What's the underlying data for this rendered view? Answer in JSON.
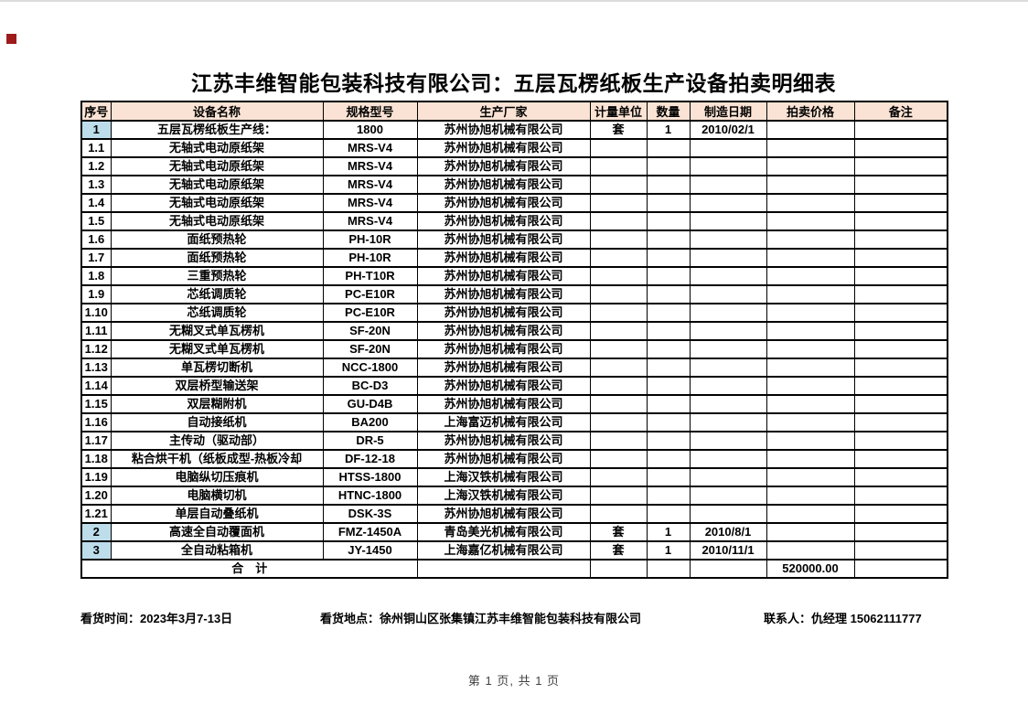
{
  "page": {
    "title": "江苏丰维智能包装科技有限公司：五层瓦楞纸板生产设备拍卖明细表",
    "page_footer": "第 1 页, 共 1 页"
  },
  "info": {
    "view_time": "看货时间：2023年3月7-13日",
    "view_place": "看货地点：徐州铜山区张集镇江苏丰维智能包装科技有限公司",
    "contact": "联系人：仇经理 15062111777"
  },
  "table": {
    "headers": [
      "序号",
      "设备名称",
      "规格型号",
      "生产厂家",
      "计量单位",
      "数量",
      "制造日期",
      "拍卖价格",
      "备注"
    ],
    "rows": [
      {
        "no": "1",
        "name": "五层瓦楞纸板生产线：",
        "model": "1800",
        "maker": "苏州协旭机械有限公司",
        "unit": "套",
        "qty": "1",
        "date": "2010/02/1",
        "price": "",
        "note": "",
        "highlight": true
      },
      {
        "no": "1.1",
        "name": "无轴式电动原纸架",
        "model": "MRS-V4",
        "maker": "苏州协旭机械有限公司",
        "unit": "",
        "qty": "",
        "date": "",
        "price": "",
        "note": "",
        "highlight": false
      },
      {
        "no": "1.2",
        "name": "无轴式电动原纸架",
        "model": "MRS-V4",
        "maker": "苏州协旭机械有限公司",
        "unit": "",
        "qty": "",
        "date": "",
        "price": "",
        "note": "",
        "highlight": false
      },
      {
        "no": "1.3",
        "name": "无轴式电动原纸架",
        "model": "MRS-V4",
        "maker": "苏州协旭机械有限公司",
        "unit": "",
        "qty": "",
        "date": "",
        "price": "",
        "note": "",
        "highlight": false
      },
      {
        "no": "1.4",
        "name": "无轴式电动原纸架",
        "model": "MRS-V4",
        "maker": "苏州协旭机械有限公司",
        "unit": "",
        "qty": "",
        "date": "",
        "price": "",
        "note": "",
        "highlight": false
      },
      {
        "no": "1.5",
        "name": "无轴式电动原纸架",
        "model": "MRS-V4",
        "maker": "苏州协旭机械有限公司",
        "unit": "",
        "qty": "",
        "date": "",
        "price": "",
        "note": "",
        "highlight": false
      },
      {
        "no": "1.6",
        "name": "面纸预热轮",
        "model": "PH-10R",
        "maker": "苏州协旭机械有限公司",
        "unit": "",
        "qty": "",
        "date": "",
        "price": "",
        "note": "",
        "highlight": false
      },
      {
        "no": "1.7",
        "name": "面纸预热轮",
        "model": "PH-10R",
        "maker": "苏州协旭机械有限公司",
        "unit": "",
        "qty": "",
        "date": "",
        "price": "",
        "note": "",
        "highlight": false
      },
      {
        "no": "1.8",
        "name": "三重预热轮",
        "model": "PH-T10R",
        "maker": "苏州协旭机械有限公司",
        "unit": "",
        "qty": "",
        "date": "",
        "price": "",
        "note": "",
        "highlight": false
      },
      {
        "no": "1.9",
        "name": "芯纸调质轮",
        "model": "PC-E10R",
        "maker": "苏州协旭机械有限公司",
        "unit": "",
        "qty": "",
        "date": "",
        "price": "",
        "note": "",
        "highlight": false
      },
      {
        "no": "1.10",
        "name": "芯纸调质轮",
        "model": "PC-E10R",
        "maker": "苏州协旭机械有限公司",
        "unit": "",
        "qty": "",
        "date": "",
        "price": "",
        "note": "",
        "highlight": false
      },
      {
        "no": "1.11",
        "name": "无糊叉式单瓦楞机",
        "model": "SF-20N",
        "maker": "苏州协旭机械有限公司",
        "unit": "",
        "qty": "",
        "date": "",
        "price": "",
        "note": "",
        "highlight": false
      },
      {
        "no": "1.12",
        "name": "无糊叉式单瓦楞机",
        "model": "SF-20N",
        "maker": "苏州协旭机械有限公司",
        "unit": "",
        "qty": "",
        "date": "",
        "price": "",
        "note": "",
        "highlight": false
      },
      {
        "no": "1.13",
        "name": "单瓦楞切断机",
        "model": "NCC-1800",
        "maker": "苏州协旭机械有限公司",
        "unit": "",
        "qty": "",
        "date": "",
        "price": "",
        "note": "",
        "highlight": false
      },
      {
        "no": "1.14",
        "name": "双层桥型输送架",
        "model": "BC-D3",
        "maker": "苏州协旭机械有限公司",
        "unit": "",
        "qty": "",
        "date": "",
        "price": "",
        "note": "",
        "highlight": false
      },
      {
        "no": "1.15",
        "name": "双层糊附机",
        "model": "GU-D4B",
        "maker": "苏州协旭机械有限公司",
        "unit": "",
        "qty": "",
        "date": "",
        "price": "",
        "note": "",
        "highlight": false
      },
      {
        "no": "1.16",
        "name": "自动接纸机",
        "model": "BA200",
        "maker": "上海富迈机械有限公司",
        "unit": "",
        "qty": "",
        "date": "",
        "price": "",
        "note": "",
        "highlight": false
      },
      {
        "no": "1.17",
        "name": "主传动（驱动部）",
        "model": "DR-5",
        "maker": "苏州协旭机械有限公司",
        "unit": "",
        "qty": "",
        "date": "",
        "price": "",
        "note": "",
        "highlight": false
      },
      {
        "no": "1.18",
        "name": "粘合烘干机（纸板成型-热板冷却",
        "model": "DF-12-18",
        "maker": "苏州协旭机械有限公司",
        "unit": "",
        "qty": "",
        "date": "",
        "price": "",
        "note": "",
        "highlight": false
      },
      {
        "no": "1.19",
        "name": "电脑纵切压痕机",
        "model": "HTSS-1800",
        "maker": "上海汉铁机械有限公司",
        "unit": "",
        "qty": "",
        "date": "",
        "price": "",
        "note": "",
        "highlight": false
      },
      {
        "no": "1.20",
        "name": "电脑横切机",
        "model": "HTNC-1800",
        "maker": "上海汉铁机械有限公司",
        "unit": "",
        "qty": "",
        "date": "",
        "price": "",
        "note": "",
        "highlight": false
      },
      {
        "no": "1.21",
        "name": "单层自动叠纸机",
        "model": "DSK-3S",
        "maker": "苏州协旭机械有限公司",
        "unit": "",
        "qty": "",
        "date": "",
        "price": "",
        "note": "",
        "highlight": false
      },
      {
        "no": "2",
        "name": "高速全自动覆面机",
        "model": "FMZ-1450A",
        "maker": "青岛美光机械有限公司",
        "unit": "套",
        "qty": "1",
        "date": "2010/8/1",
        "price": "",
        "note": "",
        "highlight": true
      },
      {
        "no": "3",
        "name": "全自动粘箱机",
        "model": "JY-1450",
        "maker": "上海嘉亿机械有限公司",
        "unit": "套",
        "qty": "1",
        "date": "2010/11/1",
        "price": "",
        "note": "",
        "highlight": true
      }
    ],
    "total_row": {
      "label": "合　计",
      "maker": "",
      "unit": "",
      "qty": "",
      "date": "",
      "price": "520000.00",
      "note": ""
    }
  },
  "colors": {
    "header_fill": "#FAE3D4",
    "index_fill": "#BDDDEB",
    "marker_red": "#9E1B1B",
    "border": "#000000",
    "footer_text": "#404040"
  }
}
